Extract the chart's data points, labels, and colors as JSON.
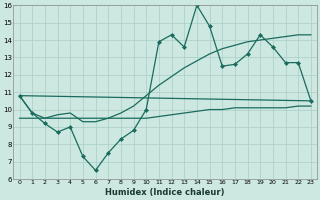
{
  "xlabel": "Humidex (Indice chaleur)",
  "ylabel": "",
  "background_color": "#cce8e0",
  "grid_color": "#aacec6",
  "line_color": "#1a6b5e",
  "xlim": [
    -0.5,
    23.5
  ],
  "ylim": [
    6,
    16
  ],
  "yticks": [
    6,
    7,
    8,
    9,
    10,
    11,
    12,
    13,
    14,
    15,
    16
  ],
  "xticks": [
    0,
    1,
    2,
    3,
    4,
    5,
    6,
    7,
    8,
    9,
    10,
    11,
    12,
    13,
    14,
    15,
    16,
    17,
    18,
    19,
    20,
    21,
    22,
    23
  ],
  "series1_x": [
    0,
    1,
    2,
    3,
    4,
    5,
    6,
    7,
    8,
    9,
    10,
    11,
    12,
    13,
    14,
    15,
    16,
    17,
    18,
    19,
    20,
    21,
    22,
    23
  ],
  "series1_y": [
    10.8,
    9.8,
    9.2,
    8.7,
    9.0,
    7.3,
    6.5,
    7.5,
    8.3,
    8.8,
    10.0,
    13.9,
    14.3,
    13.6,
    16.0,
    14.8,
    12.5,
    12.6,
    13.2,
    14.3,
    13.6,
    12.7,
    12.7,
    10.5
  ],
  "series2_x": [
    0,
    23
  ],
  "series2_y": [
    10.8,
    10.5
  ],
  "series3_x": [
    0,
    1,
    2,
    3,
    4,
    5,
    6,
    7,
    8,
    9,
    10,
    11,
    12,
    13,
    14,
    15,
    16,
    17,
    18,
    19,
    20,
    21,
    22,
    23
  ],
  "series3_y": [
    9.5,
    9.5,
    9.5,
    9.5,
    9.5,
    9.5,
    9.5,
    9.5,
    9.5,
    9.5,
    9.5,
    9.6,
    9.7,
    9.8,
    9.9,
    10.0,
    10.0,
    10.1,
    10.1,
    10.1,
    10.1,
    10.1,
    10.2,
    10.2
  ],
  "series4_x": [
    0,
    1,
    2,
    3,
    4,
    5,
    6,
    7,
    8,
    9,
    10,
    11,
    12,
    13,
    14,
    15,
    16,
    17,
    18,
    19,
    20,
    21,
    22,
    23
  ],
  "series4_y": [
    10.8,
    9.8,
    9.5,
    9.7,
    9.8,
    9.3,
    9.3,
    9.5,
    9.8,
    10.2,
    10.8,
    11.4,
    11.9,
    12.4,
    12.8,
    13.2,
    13.5,
    13.7,
    13.9,
    14.0,
    14.1,
    14.2,
    14.3,
    14.3
  ]
}
